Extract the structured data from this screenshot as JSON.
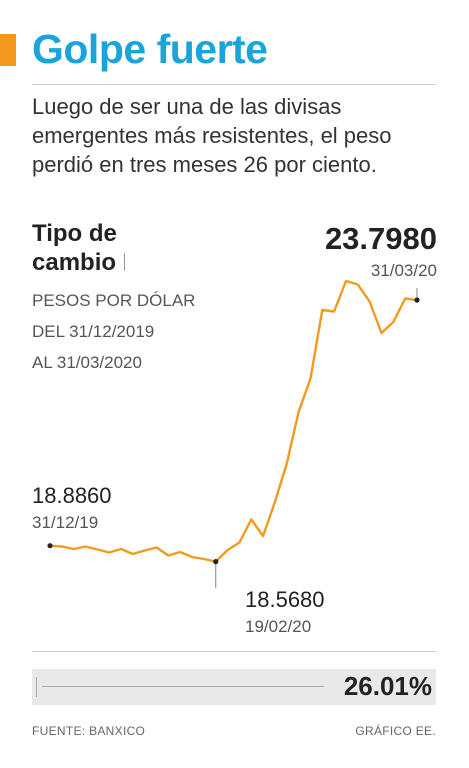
{
  "header": {
    "title": "Golpe fuerte",
    "subtitle": "Luego de ser una de las divisas emergentes más resistentes, el peso perdió en tres meses 26 por ciento."
  },
  "label": {
    "title_line1": "Tipo de",
    "title_line2": "cambio",
    "sub_line1": "PESOS POR DÓLAR",
    "sub_line2": "DEL 31/12/2019",
    "sub_line3": "AL 31/03/2020"
  },
  "chart_data": {
    "type": "line",
    "title": "",
    "xlabel": "",
    "ylabel": "",
    "colors": {
      "line": "#f39a1e",
      "marker": "#222222",
      "leader": "#888888"
    },
    "x": [
      "31/12/19",
      "03/01/20",
      "07/01/20",
      "10/01/20",
      "14/01/20",
      "17/01/20",
      "21/01/20",
      "24/01/20",
      "28/01/20",
      "31/01/20",
      "04/02/20",
      "07/02/20",
      "11/02/20",
      "14/02/20",
      "19/02/20",
      "21/02/20",
      "25/02/20",
      "28/02/20",
      "03/03/20",
      "06/03/20",
      "09/03/20",
      "12/03/20",
      "16/03/20",
      "18/03/20",
      "20/03/20",
      "23/03/20",
      "24/03/20",
      "25/03/20",
      "26/03/20",
      "27/03/20",
      "30/03/20",
      "31/03/20"
    ],
    "values": [
      18.886,
      18.87,
      18.82,
      18.87,
      18.81,
      18.75,
      18.82,
      18.72,
      18.79,
      18.85,
      18.69,
      18.76,
      18.66,
      18.62,
      18.568,
      18.8,
      18.95,
      19.41,
      19.08,
      19.76,
      20.53,
      21.56,
      22.23,
      23.6,
      23.57,
      24.18,
      24.11,
      23.77,
      23.14,
      23.36,
      23.83,
      23.798
    ],
    "ylim": [
      18.3,
      24.5
    ],
    "annotations": [
      {
        "value": "18.8860",
        "date": "31/12/19",
        "index": 0
      },
      {
        "value": "18.5680",
        "date": "19/02/20",
        "index": 14
      },
      {
        "value": "23.7980",
        "date": "31/03/20",
        "index": 31
      }
    ]
  },
  "change": {
    "value": "26.01%"
  },
  "footer": {
    "source": "FUENTE: BANXICO",
    "credit": "GRÁFICO EE."
  }
}
